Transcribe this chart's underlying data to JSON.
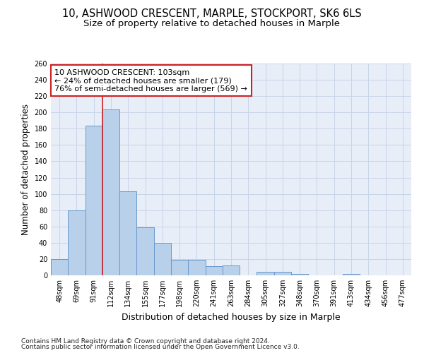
{
  "title": "10, ASHWOOD CRESCENT, MARPLE, STOCKPORT, SK6 6LS",
  "subtitle": "Size of property relative to detached houses in Marple",
  "xlabel": "Distribution of detached houses by size in Marple",
  "ylabel": "Number of detached properties",
  "categories": [
    "48sqm",
    "69sqm",
    "91sqm",
    "112sqm",
    "134sqm",
    "155sqm",
    "177sqm",
    "198sqm",
    "220sqm",
    "241sqm",
    "263sqm",
    "284sqm",
    "305sqm",
    "327sqm",
    "348sqm",
    "370sqm",
    "391sqm",
    "413sqm",
    "434sqm",
    "456sqm",
    "477sqm"
  ],
  "values": [
    20,
    80,
    184,
    204,
    103,
    59,
    40,
    19,
    19,
    11,
    12,
    0,
    4,
    4,
    2,
    0,
    0,
    2,
    0,
    0,
    0
  ],
  "bar_color": "#b8d0ea",
  "bar_edge_color": "#6699cc",
  "annotation_text_line1": "10 ASHWOOD CRESCENT: 103sqm",
  "annotation_text_line2": "← 24% of detached houses are smaller (179)",
  "annotation_text_line3": "76% of semi-detached houses are larger (569) →",
  "vline_x": 2.5,
  "vline_color": "#cc2222",
  "ylim": [
    0,
    260
  ],
  "yticks": [
    0,
    20,
    40,
    60,
    80,
    100,
    120,
    140,
    160,
    180,
    200,
    220,
    240,
    260
  ],
  "grid_color": "#c8d4e8",
  "bg_color": "#e8eef8",
  "footer_line1": "Contains HM Land Registry data © Crown copyright and database right 2024.",
  "footer_line2": "Contains public sector information licensed under the Open Government Licence v3.0.",
  "title_fontsize": 10.5,
  "subtitle_fontsize": 9.5,
  "xlabel_fontsize": 9,
  "ylabel_fontsize": 8.5,
  "tick_fontsize": 7,
  "annotation_fontsize": 8,
  "footer_fontsize": 6.5
}
